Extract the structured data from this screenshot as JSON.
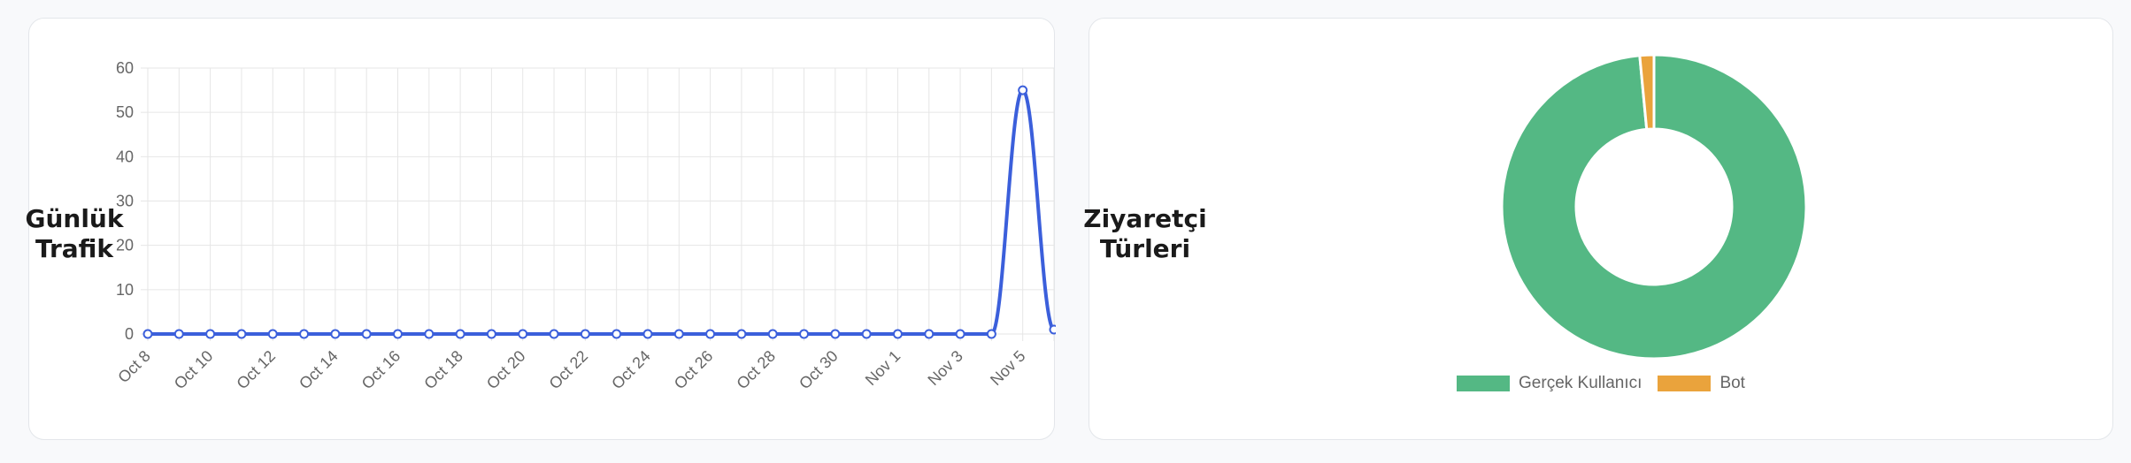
{
  "cards": {
    "traffic_title": "Günlük\nTrafik",
    "visitors_title": "Ziyaretçi\nTürleri"
  },
  "colors": {
    "line": "#3b5fdb",
    "human": "#54b884",
    "bot": "#eaa33c",
    "grid": "#e6e6e6"
  },
  "chart_data": [
    {
      "type": "line",
      "title": "Günlük Trafik",
      "xlabel": "",
      "ylabel": "",
      "x": [
        "Oct 8",
        "Oct 9",
        "Oct 10",
        "Oct 11",
        "Oct 12",
        "Oct 13",
        "Oct 14",
        "Oct 15",
        "Oct 16",
        "Oct 17",
        "Oct 18",
        "Oct 19",
        "Oct 20",
        "Oct 21",
        "Oct 22",
        "Oct 23",
        "Oct 24",
        "Oct 25",
        "Oct 26",
        "Oct 27",
        "Oct 28",
        "Oct 29",
        "Oct 30",
        "Oct 31",
        "Nov 1",
        "Nov 2",
        "Nov 3",
        "Nov 4",
        "Nov 5",
        "Nov 6"
      ],
      "tick_labels": [
        "Oct 8",
        "Oct 10",
        "Oct 12",
        "Oct 14",
        "Oct 16",
        "Oct 18",
        "Oct 20",
        "Oct 22",
        "Oct 24",
        "Oct 26",
        "Oct 28",
        "Oct 30",
        "Nov 1",
        "Nov 3",
        "Nov 5"
      ],
      "series": [
        {
          "values": [
            0,
            0,
            0,
            0,
            0,
            0,
            0,
            0,
            0,
            0,
            0,
            0,
            0,
            0,
            0,
            0,
            0,
            0,
            0,
            0,
            0,
            0,
            0,
            0,
            0,
            0,
            0,
            0,
            55,
            1
          ]
        }
      ],
      "ylim": [
        0,
        60
      ],
      "yticks": [
        0,
        10,
        20,
        30,
        40,
        50,
        60
      ],
      "grid": true,
      "smooth": true
    },
    {
      "type": "pie",
      "donut": true,
      "title": "Ziyaretçi Türleri",
      "categories": [
        "Gerçek Kullanıcı",
        "Bot"
      ],
      "values": [
        98.5,
        1.5
      ],
      "legend": "bottom"
    }
  ]
}
